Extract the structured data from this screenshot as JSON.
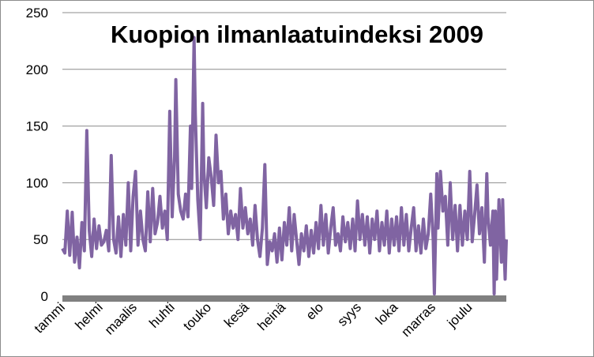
{
  "chart_data": {
    "type": "line",
    "title": "Kuopion ilmanlaatuindeksi 2009",
    "xlabel": "",
    "ylabel": "",
    "ylim": [
      0,
      250
    ],
    "yticks": [
      0,
      50,
      100,
      150,
      200,
      250
    ],
    "categories": [
      "tammi",
      "helmi",
      "maalis",
      "huhti",
      "touko",
      "kesä",
      "heinä",
      "elo",
      "syys",
      "loka",
      "marras",
      "joulu"
    ],
    "grid": "horizontal",
    "legend": "none",
    "series": [
      {
        "color": "#8064a2",
        "x_unit": "day of year",
        "points": [
          [
            1,
            42
          ],
          [
            3,
            38
          ],
          [
            5,
            75
          ],
          [
            7,
            36
          ],
          [
            9,
            74
          ],
          [
            11,
            30
          ],
          [
            13,
            52
          ],
          [
            15,
            25
          ],
          [
            17,
            65
          ],
          [
            19,
            40
          ],
          [
            21,
            146
          ],
          [
            23,
            58
          ],
          [
            25,
            35
          ],
          [
            27,
            68
          ],
          [
            29,
            42
          ],
          [
            31,
            62
          ],
          [
            33,
            45
          ],
          [
            35,
            48
          ],
          [
            37,
            58
          ],
          [
            39,
            40
          ],
          [
            41,
            124
          ],
          [
            43,
            50
          ],
          [
            45,
            38
          ],
          [
            47,
            70
          ],
          [
            49,
            35
          ],
          [
            51,
            72
          ],
          [
            53,
            45
          ],
          [
            55,
            100
          ],
          [
            57,
            40
          ],
          [
            59,
            88
          ],
          [
            61,
            110
          ],
          [
            63,
            45
          ],
          [
            65,
            75
          ],
          [
            67,
            50
          ],
          [
            69,
            40
          ],
          [
            71,
            92
          ],
          [
            73,
            48
          ],
          [
            75,
            95
          ],
          [
            77,
            55
          ],
          [
            79,
            65
          ],
          [
            81,
            88
          ],
          [
            83,
            60
          ],
          [
            85,
            75
          ],
          [
            87,
            50
          ],
          [
            89,
            163
          ],
          [
            91,
            70
          ],
          [
            93,
            123
          ],
          [
            94,
            191
          ],
          [
            96,
            90
          ],
          [
            98,
            75
          ],
          [
            100,
            68
          ],
          [
            102,
            90
          ],
          [
            104,
            70
          ],
          [
            106,
            150
          ],
          [
            107,
            95
          ],
          [
            109,
            228
          ],
          [
            110,
            160
          ],
          [
            112,
            85
          ],
          [
            114,
            50
          ],
          [
            116,
            170
          ],
          [
            117,
            110
          ],
          [
            119,
            78
          ],
          [
            121,
            122
          ],
          [
            123,
            105
          ],
          [
            125,
            80
          ],
          [
            127,
            142
          ],
          [
            129,
            100
          ],
          [
            131,
            110
          ],
          [
            133,
            68
          ],
          [
            135,
            90
          ],
          [
            137,
            55
          ],
          [
            139,
            75
          ],
          [
            141,
            60
          ],
          [
            143,
            72
          ],
          [
            145,
            50
          ],
          [
            147,
            95
          ],
          [
            149,
            60
          ],
          [
            151,
            78
          ],
          [
            153,
            55
          ],
          [
            155,
            68
          ],
          [
            157,
            45
          ],
          [
            159,
            80
          ],
          [
            161,
            50
          ],
          [
            163,
            35
          ],
          [
            165,
            60
          ],
          [
            167,
            116
          ],
          [
            169,
            28
          ],
          [
            171,
            48
          ],
          [
            173,
            40
          ],
          [
            175,
            55
          ],
          [
            177,
            30
          ],
          [
            179,
            60
          ],
          [
            181,
            32
          ],
          [
            183,
            65
          ],
          [
            185,
            45
          ],
          [
            187,
            78
          ],
          [
            189,
            40
          ],
          [
            191,
            72
          ],
          [
            193,
            50
          ],
          [
            195,
            28
          ],
          [
            197,
            55
          ],
          [
            199,
            40
          ],
          [
            201,
            62
          ],
          [
            203,
            35
          ],
          [
            205,
            58
          ],
          [
            207,
            38
          ],
          [
            209,
            65
          ],
          [
            211,
            42
          ],
          [
            213,
            80
          ],
          [
            215,
            45
          ],
          [
            217,
            72
          ],
          [
            219,
            38
          ],
          [
            221,
            60
          ],
          [
            223,
            78
          ],
          [
            225,
            45
          ],
          [
            227,
            55
          ],
          [
            229,
            40
          ],
          [
            231,
            70
          ],
          [
            233,
            48
          ],
          [
            235,
            65
          ],
          [
            237,
            42
          ],
          [
            239,
            68
          ],
          [
            241,
            40
          ],
          [
            243,
            84
          ],
          [
            245,
            50
          ],
          [
            247,
            72
          ],
          [
            249,
            45
          ],
          [
            251,
            70
          ],
          [
            253,
            38
          ],
          [
            255,
            68
          ],
          [
            257,
            50
          ],
          [
            259,
            75
          ],
          [
            261,
            40
          ],
          [
            263,
            65
          ],
          [
            265,
            45
          ],
          [
            267,
            75
          ],
          [
            269,
            38
          ],
          [
            271,
            68
          ],
          [
            273,
            45
          ],
          [
            275,
            70
          ],
          [
            277,
            40
          ],
          [
            279,
            78
          ],
          [
            281,
            45
          ],
          [
            283,
            72
          ],
          [
            285,
            40
          ],
          [
            287,
            60
          ],
          [
            289,
            78
          ],
          [
            291,
            40
          ],
          [
            293,
            62
          ],
          [
            295,
            38
          ],
          [
            297,
            68
          ],
          [
            299,
            42
          ],
          [
            301,
            55
          ],
          [
            303,
            90
          ],
          [
            305,
            50
          ],
          [
            306,
            2
          ],
          [
            308,
            108
          ],
          [
            309,
            60
          ],
          [
            311,
            110
          ],
          [
            313,
            75
          ],
          [
            315,
            88
          ],
          [
            317,
            45
          ],
          [
            319,
            100
          ],
          [
            321,
            50
          ],
          [
            323,
            80
          ],
          [
            325,
            40
          ],
          [
            327,
            80
          ],
          [
            329,
            45
          ],
          [
            331,
            75
          ],
          [
            333,
            50
          ],
          [
            335,
            110
          ],
          [
            337,
            48
          ],
          [
            339,
            72
          ],
          [
            341,
            98
          ],
          [
            343,
            55
          ],
          [
            345,
            78
          ],
          [
            347,
            30
          ],
          [
            349,
            108
          ],
          [
            350,
            70
          ],
          [
            352,
            45
          ],
          [
            354,
            75
          ],
          [
            355,
            2
          ],
          [
            356,
            75
          ],
          [
            357,
            15
          ],
          [
            359,
            85
          ],
          [
            361,
            30
          ],
          [
            362,
            85
          ],
          [
            363,
            45
          ],
          [
            364,
            15
          ],
          [
            365,
            50
          ]
        ]
      }
    ]
  }
}
